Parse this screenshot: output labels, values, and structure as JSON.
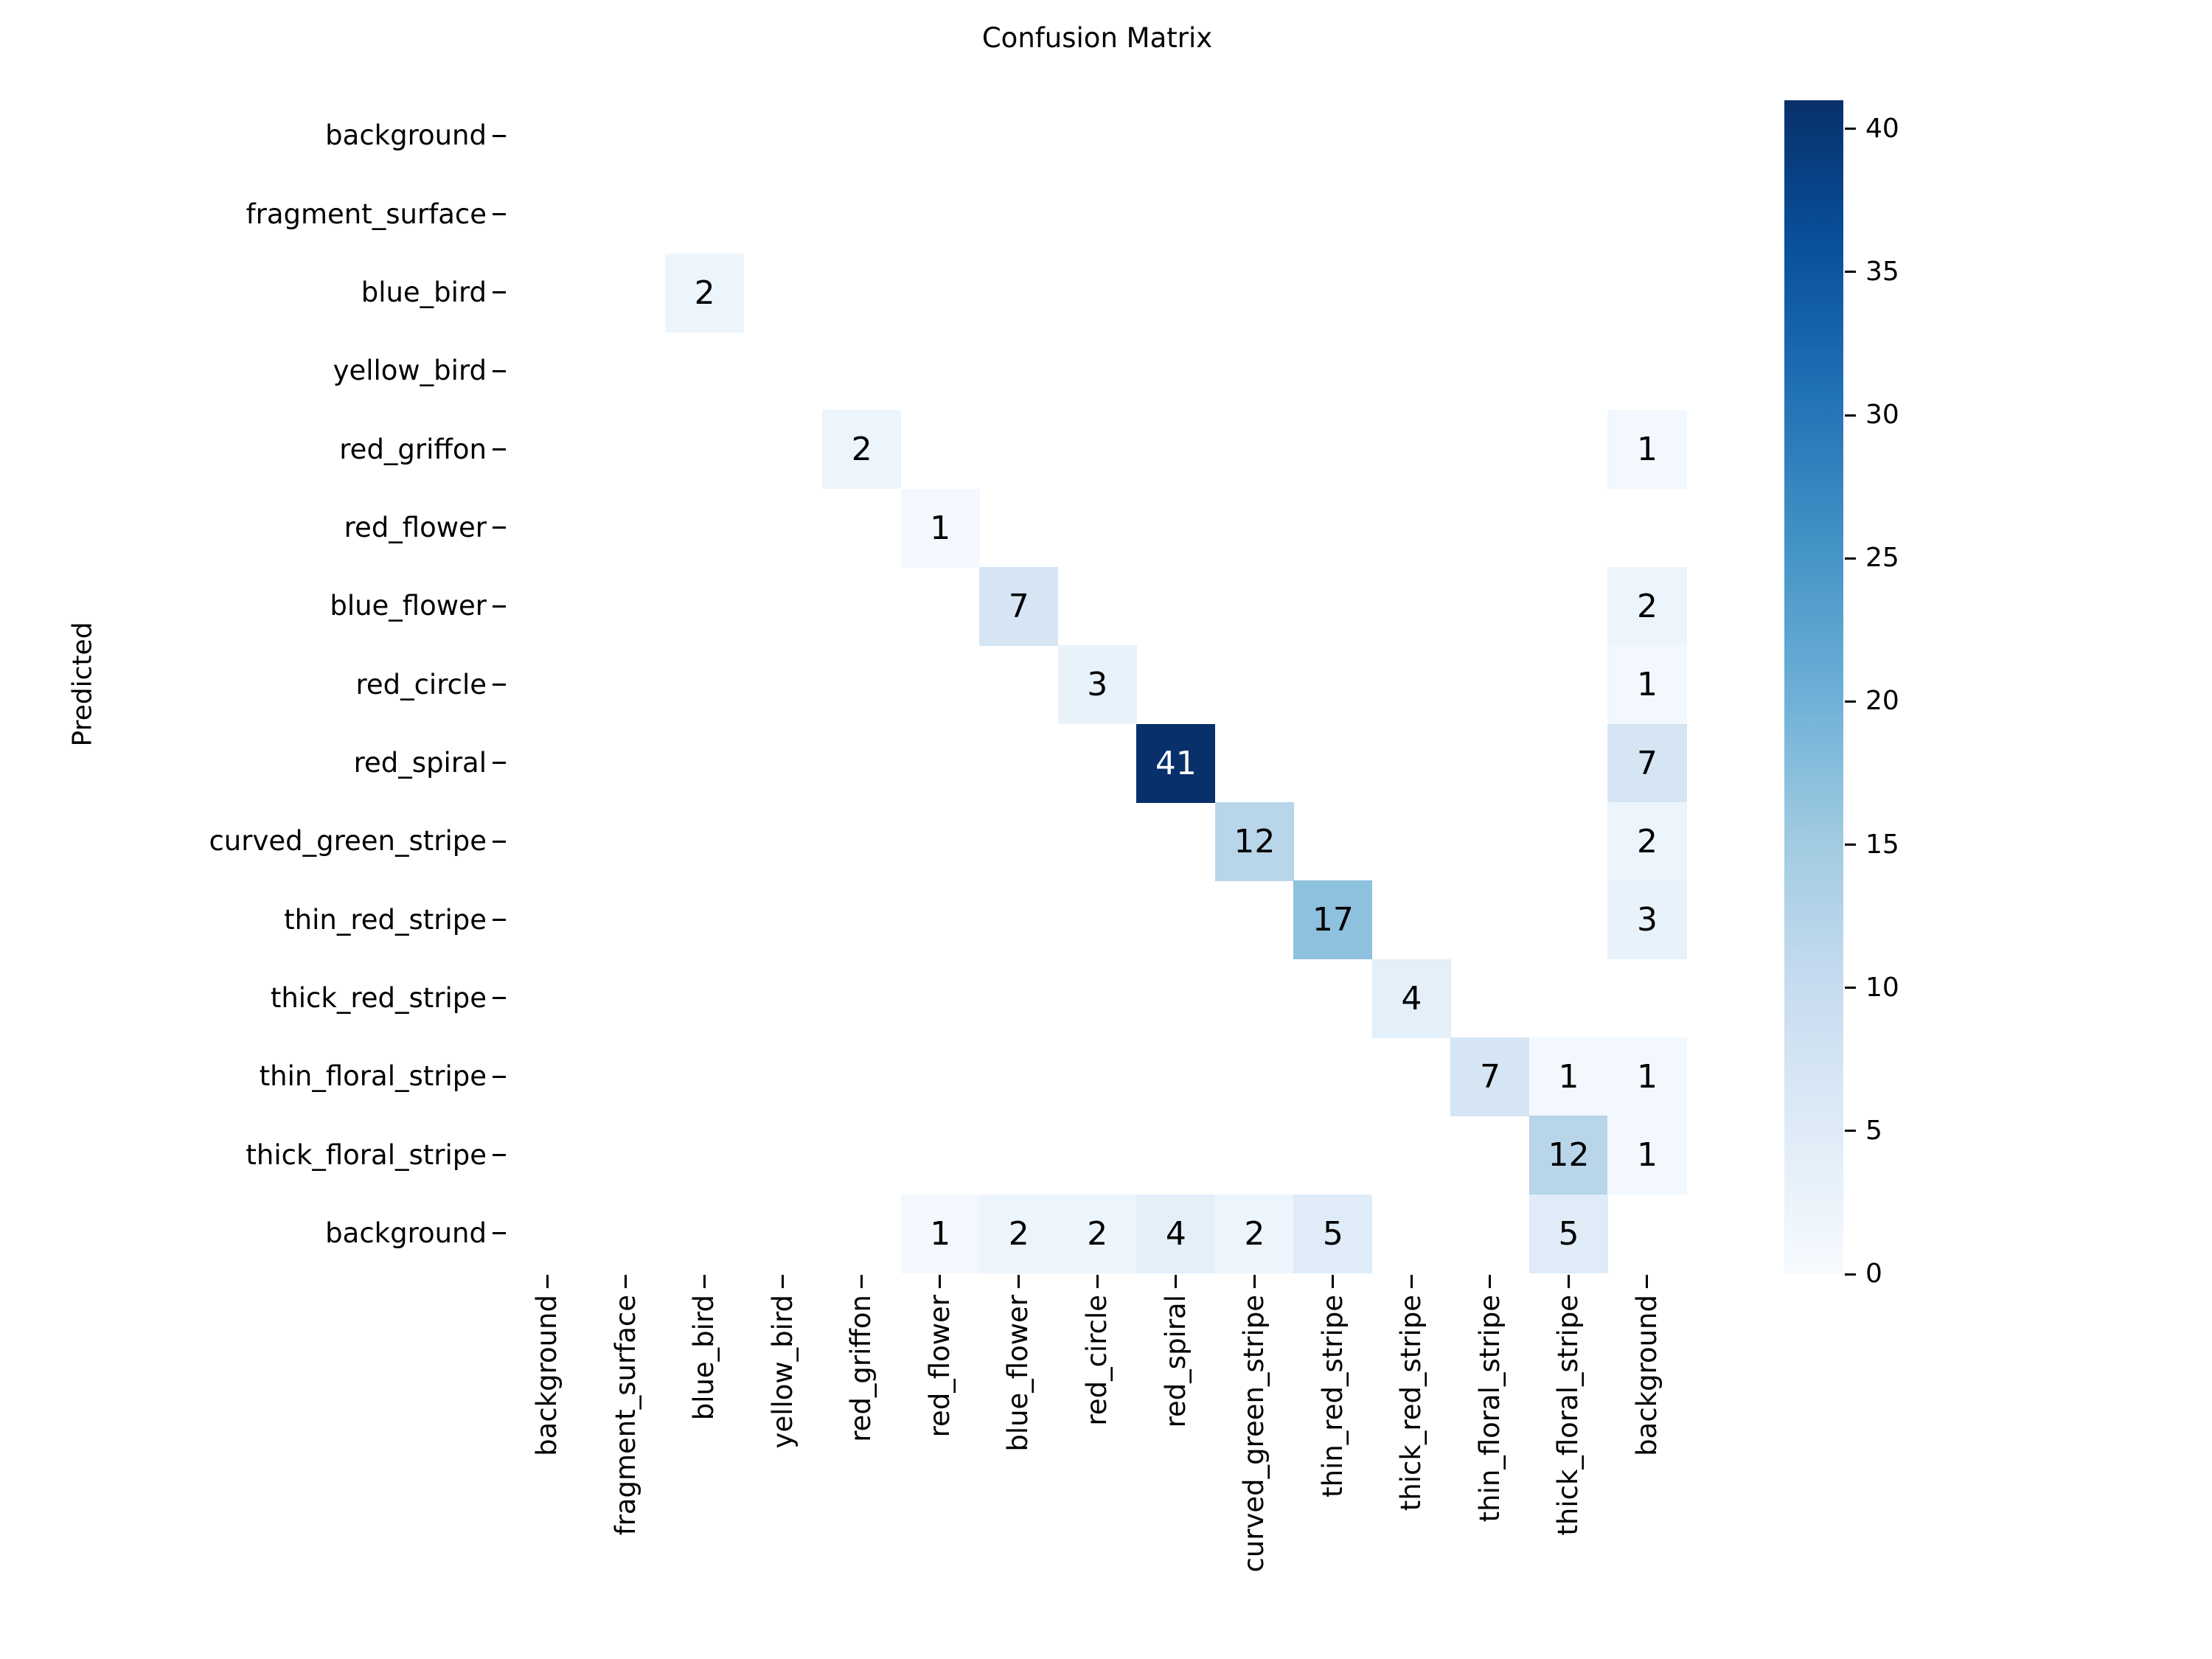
{
  "title": "Confusion Matrix",
  "axes": {
    "y_axis_title": "Predicted",
    "x_axis_title": ""
  },
  "colors": {
    "figure_background": "#ffffff",
    "empty_cell": "#ffffff",
    "annotation_dark_text": "#000000",
    "annotation_light_text": "#ffffff",
    "tick_color": "#000000"
  },
  "chart_data": {
    "type": "heatmap",
    "title": "Confusion Matrix",
    "ylabel": "Predicted",
    "xlabel": "",
    "grid": false,
    "legend_position": "right-colorbar",
    "rows": [
      "background",
      "fragment_surface",
      "blue_bird",
      "yellow_bird",
      "red_griffon",
      "red_flower",
      "blue_flower",
      "red_circle",
      "red_spiral",
      "curved_green_stripe",
      "thin_red_stripe",
      "thick_red_stripe",
      "thin_floral_stripe",
      "thick_floral_stripe",
      "background"
    ],
    "cols": [
      "background",
      "fragment_surface",
      "blue_bird",
      "yellow_bird",
      "red_griffon",
      "red_flower",
      "blue_flower",
      "red_circle",
      "red_spiral",
      "curved_green_stripe",
      "thin_red_stripe",
      "thick_red_stripe",
      "thin_floral_stripe",
      "thick_floral_stripe",
      "background"
    ],
    "matrix": [
      [
        0,
        0,
        0,
        0,
        0,
        0,
        0,
        0,
        0,
        0,
        0,
        0,
        0,
        0,
        0
      ],
      [
        0,
        0,
        0,
        0,
        0,
        0,
        0,
        0,
        0,
        0,
        0,
        0,
        0,
        0,
        0
      ],
      [
        0,
        0,
        2,
        0,
        0,
        0,
        0,
        0,
        0,
        0,
        0,
        0,
        0,
        0,
        0
      ],
      [
        0,
        0,
        0,
        0,
        0,
        0,
        0,
        0,
        0,
        0,
        0,
        0,
        0,
        0,
        0
      ],
      [
        0,
        0,
        0,
        0,
        2,
        0,
        0,
        0,
        0,
        0,
        0,
        0,
        0,
        0,
        1
      ],
      [
        0,
        0,
        0,
        0,
        0,
        1,
        0,
        0,
        0,
        0,
        0,
        0,
        0,
        0,
        0
      ],
      [
        0,
        0,
        0,
        0,
        0,
        0,
        7,
        0,
        0,
        0,
        0,
        0,
        0,
        0,
        2
      ],
      [
        0,
        0,
        0,
        0,
        0,
        0,
        0,
        3,
        0,
        0,
        0,
        0,
        0,
        0,
        1
      ],
      [
        0,
        0,
        0,
        0,
        0,
        0,
        0,
        0,
        41,
        0,
        0,
        0,
        0,
        0,
        7
      ],
      [
        0,
        0,
        0,
        0,
        0,
        0,
        0,
        0,
        0,
        12,
        0,
        0,
        0,
        0,
        2
      ],
      [
        0,
        0,
        0,
        0,
        0,
        0,
        0,
        0,
        0,
        0,
        17,
        0,
        0,
        0,
        3
      ],
      [
        0,
        0,
        0,
        0,
        0,
        0,
        0,
        0,
        0,
        0,
        0,
        4,
        0,
        0,
        0
      ],
      [
        0,
        0,
        0,
        0,
        0,
        0,
        0,
        0,
        0,
        0,
        0,
        0,
        7,
        1,
        1
      ],
      [
        0,
        0,
        0,
        0,
        0,
        0,
        0,
        0,
        0,
        0,
        0,
        0,
        0,
        12,
        1
      ],
      [
        0,
        0,
        0,
        0,
        0,
        1,
        2,
        2,
        4,
        2,
        5,
        0,
        0,
        5,
        0
      ]
    ],
    "vmin": 0,
    "vmax": 41,
    "hide_zero_cells": true,
    "annotation_light_text_threshold": 20.5,
    "colormap_name": "Blues",
    "colormap_stops": [
      {
        "pos": 0.0,
        "color": "#f7fbff"
      },
      {
        "pos": 0.125,
        "color": "#deebf7"
      },
      {
        "pos": 0.25,
        "color": "#c6dbef"
      },
      {
        "pos": 0.375,
        "color": "#9ecae1"
      },
      {
        "pos": 0.5,
        "color": "#6baed6"
      },
      {
        "pos": 0.625,
        "color": "#4292c6"
      },
      {
        "pos": 0.75,
        "color": "#2171b5"
      },
      {
        "pos": 0.875,
        "color": "#08519c"
      },
      {
        "pos": 1.0,
        "color": "#08306b"
      }
    ],
    "colorbar_ticks": [
      0,
      5,
      10,
      15,
      20,
      25,
      30,
      35,
      40
    ]
  }
}
